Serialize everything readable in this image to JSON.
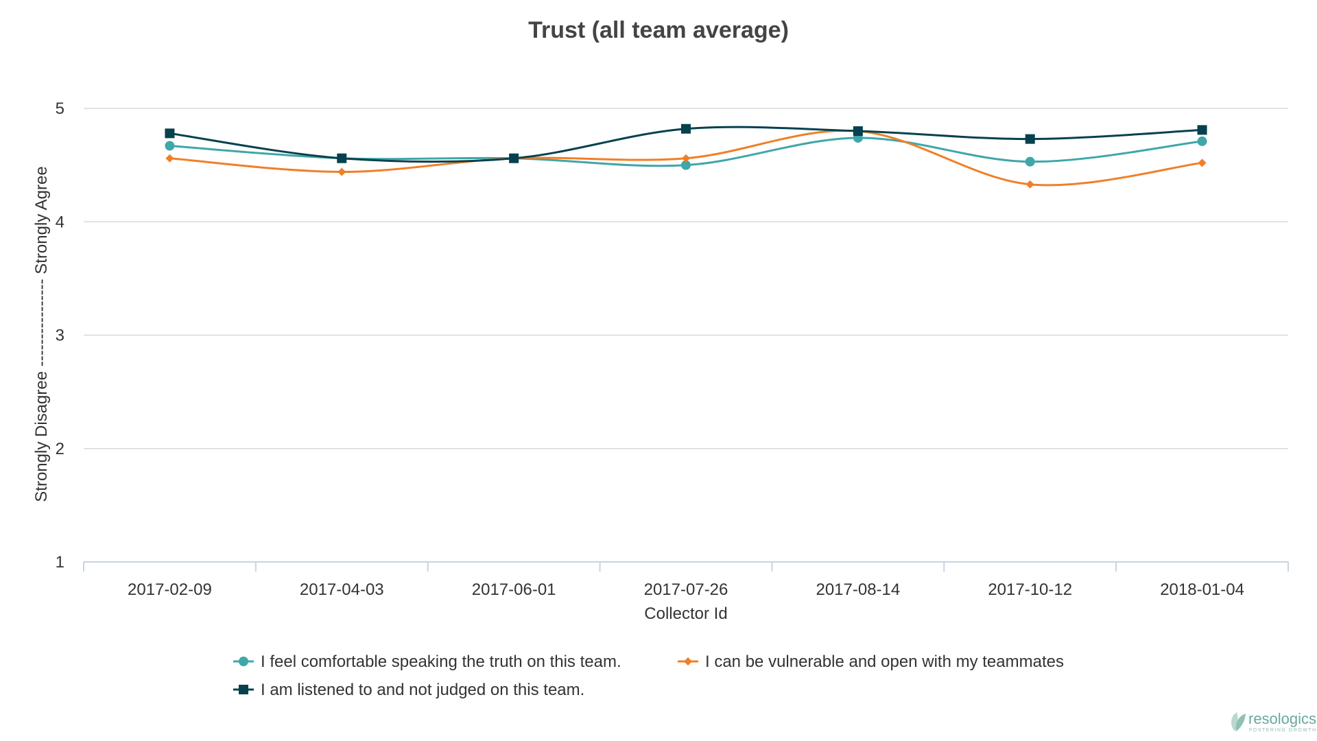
{
  "chart_data": {
    "type": "line",
    "title": "Trust (all team average)",
    "xlabel": "Collector Id",
    "ylabel": "Strongly Disagree ---------------- Strongly Agree",
    "categories": [
      "2017-02-09",
      "2017-04-03",
      "2017-06-01",
      "2017-07-26",
      "2017-08-14",
      "2017-10-12",
      "2018-01-04"
    ],
    "ylim": [
      1,
      5
    ],
    "yticks": [
      "1",
      "2",
      "3",
      "4",
      "5"
    ],
    "grid": true,
    "legend_position": "bottom",
    "series": [
      {
        "name": "I feel comfortable speaking the truth on this team.",
        "values": [
          4.67,
          4.56,
          4.56,
          4.5,
          4.74,
          4.53,
          4.71
        ],
        "color": "#3fa6aa",
        "marker": "circle"
      },
      {
        "name": "I can be vulnerable and open with my teammates",
        "values": [
          4.56,
          4.44,
          4.56,
          4.56,
          4.8,
          4.33,
          4.52
        ],
        "color": "#f07f27",
        "marker": "diamond"
      },
      {
        "name": "I am listened to and not judged on this team.",
        "values": [
          4.78,
          4.56,
          4.56,
          4.82,
          4.8,
          4.73,
          4.81
        ],
        "color": "#06414d",
        "marker": "square"
      }
    ]
  },
  "branding": {
    "logo_text": "resologics",
    "logo_tagline": "FOSTERING GROWTH",
    "logo_color": "#6aa89e"
  }
}
